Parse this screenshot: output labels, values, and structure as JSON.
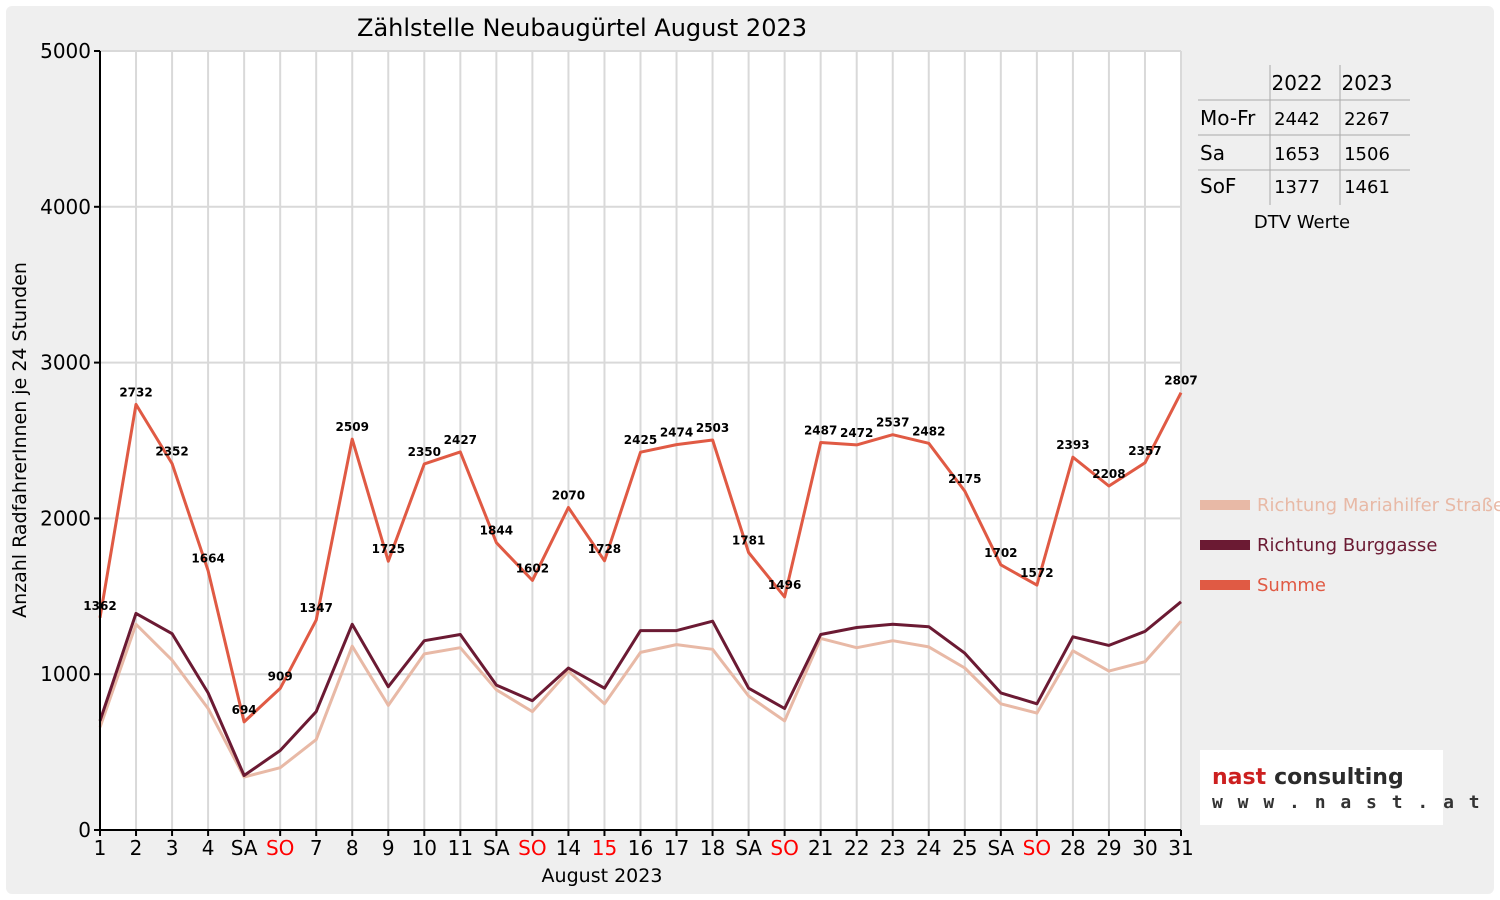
{
  "chart_data": {
    "type": "line",
    "title": "Zählstelle Neubaugürtel August 2023",
    "xlabel": "August 2023",
    "ylabel": "Anzahl RadfahrerInnen je 24 Stunden",
    "ylim": [
      0,
      5000
    ],
    "yticks": [
      "0",
      "1000",
      "2000",
      "3000",
      "4000",
      "5000"
    ],
    "grid": true,
    "legend_position": "right",
    "categories": [
      "1",
      "2",
      "3",
      "4",
      "SA",
      "SO",
      "7",
      "8",
      "9",
      "10",
      "11",
      "SA",
      "SO",
      "14",
      "15",
      "16",
      "17",
      "18",
      "SA",
      "SO",
      "21",
      "22",
      "23",
      "24",
      "25",
      "SA",
      "SO",
      "28",
      "29",
      "30",
      "31"
    ],
    "category_colors": [
      "#000000",
      "#000000",
      "#000000",
      "#000000",
      "#000000",
      "#ff0000",
      "#000000",
      "#000000",
      "#000000",
      "#000000",
      "#000000",
      "#000000",
      "#ff0000",
      "#000000",
      "#ff0000",
      "#000000",
      "#000000",
      "#000000",
      "#000000",
      "#ff0000",
      "#000000",
      "#000000",
      "#000000",
      "#000000",
      "#000000",
      "#000000",
      "#ff0000",
      "#000000",
      "#000000",
      "#000000",
      "#000000"
    ],
    "series": [
      {
        "name": "Richtung Mariahilfer Straße",
        "color": "#e8b9a6",
        "values": [
          660,
          1320,
          1090,
          780,
          340,
          400,
          580,
          1180,
          800,
          1130,
          1170,
          900,
          760,
          1020,
          810,
          1140,
          1190,
          1160,
          860,
          700,
          1230,
          1170,
          1215,
          1175,
          1040,
          810,
          750,
          1150,
          1020,
          1080,
          1340
        ]
      },
      {
        "name": "Richtung Burggasse",
        "color": "#6b1a33",
        "values": [
          700,
          1390,
          1260,
          880,
          350,
          510,
          760,
          1320,
          920,
          1215,
          1255,
          930,
          830,
          1040,
          910,
          1280,
          1280,
          1340,
          910,
          780,
          1255,
          1300,
          1320,
          1305,
          1135,
          880,
          810,
          1240,
          1185,
          1275,
          1465
        ]
      },
      {
        "name": "Summe",
        "color": "#e05a44",
        "values": [
          1362,
          2732,
          2352,
          1664,
          694,
          909,
          1347,
          2509,
          1725,
          2350,
          2427,
          1844,
          1602,
          2070,
          1728,
          2425,
          2474,
          2503,
          1781,
          1496,
          2487,
          2472,
          2537,
          2482,
          2175,
          1702,
          1572,
          2393,
          2208,
          2357,
          2807
        ]
      }
    ]
  },
  "dtv_table": {
    "caption": "DTV Werte",
    "headers": [
      "",
      "2022",
      "2023"
    ],
    "rows": [
      [
        "Mo-Fr",
        "2442",
        "2267"
      ],
      [
        "Sa",
        "1653",
        "1506"
      ],
      [
        "SoF",
        "1377",
        "1461"
      ]
    ]
  },
  "logo": {
    "brand_red": "nast",
    "brand_dark": "consulting",
    "url": "w w w . n a s t . a t",
    "colors": {
      "red": "#cc1f1f",
      "dark": "#2b2b2b"
    }
  }
}
